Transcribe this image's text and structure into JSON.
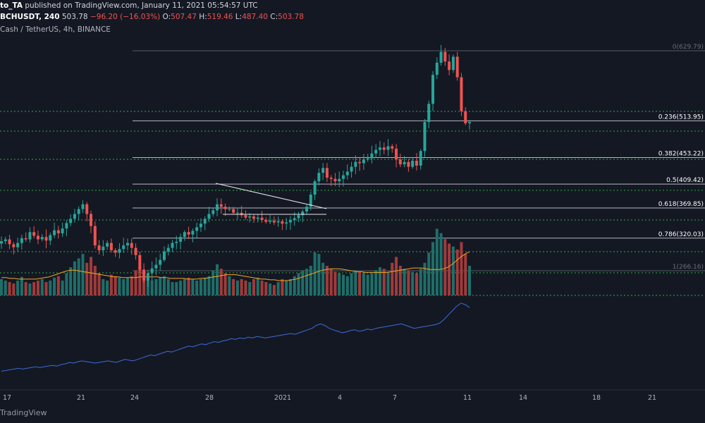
{
  "header": {
    "author": "to_TA",
    "published": "published on TradingView.com, January 11, 2021 05:54:57 UTC",
    "symbol": "BCHUSDT, 240",
    "price": "503.78",
    "change": "−96.20 (−16.03%)",
    "o_label": "O:",
    "o_value": "507.47",
    "h_label": "H:",
    "h_value": "519.46",
    "l_label": "L:",
    "l_value": "487.40",
    "c_label": "C:",
    "c_value": "503.78"
  },
  "subtitle": "Cash / TetherUS, 4h, BINANCE",
  "footer": {
    "brand": "TradingView"
  },
  "colors": {
    "up": "#26a69a",
    "down": "#ef5350",
    "volume_up": "#1e6f69",
    "volume_down": "#a33a3a",
    "fib_line": "#d1d4dc",
    "green_dotted": "#2ebd46",
    "ma_line": "#f5a623",
    "indicator": "#3c6bd6"
  },
  "chart_data": {
    "type": "candlestick",
    "symbol": "BCHUSDT",
    "interval": "4h",
    "exchange": "BINANCE",
    "fib_levels": [
      {
        "ratio": "0",
        "price": 629.79,
        "label": "0(629.79)"
      },
      {
        "ratio": "0.236",
        "price": 513.95,
        "label": "0.236(513.95)"
      },
      {
        "ratio": "0.382",
        "price": 453.22,
        "label": "0.382(453.22)"
      },
      {
        "ratio": "0.5",
        "price": 409.42,
        "label": "0.5(409.42)"
      },
      {
        "ratio": "0.618",
        "price": 369.85,
        "label": "0.618(369.85)"
      },
      {
        "ratio": "0.786",
        "price": 320.03,
        "label": "0.786(320.03)"
      },
      {
        "ratio": "1",
        "price": 266.16,
        "label": "1(266.16)"
      }
    ],
    "x_ticks": [
      "17",
      "21",
      "24",
      "28",
      "2021",
      "4",
      "7",
      "11",
      "14",
      "18",
      "21"
    ],
    "price_series_close": [
      315,
      318,
      310,
      305,
      312,
      320,
      318,
      330,
      324,
      318,
      322,
      316,
      325,
      333,
      328,
      336,
      345,
      352,
      360,
      368,
      376,
      360,
      340,
      308,
      300,
      306,
      312,
      300,
      296,
      302,
      308,
      312,
      304,
      292,
      268,
      250,
      262,
      270,
      276,
      284,
      298,
      304,
      312,
      314,
      322,
      330,
      326,
      332,
      338,
      344,
      352,
      360,
      366,
      376,
      372,
      368,
      368,
      362,
      362,
      358,
      354,
      356,
      352,
      354,
      350,
      347,
      349,
      346,
      348,
      344,
      346,
      350,
      353,
      358,
      364,
      372,
      392,
      414,
      428,
      436,
      420,
      418,
      414,
      418,
      424,
      430,
      438,
      446,
      444,
      450,
      452,
      460,
      466,
      470,
      466,
      472,
      468,
      450,
      442,
      446,
      438,
      448,
      440,
      464,
      512,
      542,
      590,
      610,
      628,
      612,
      598,
      620,
      586,
      530,
      510,
      512
    ],
    "volume": [
      22,
      20,
      18,
      16,
      20,
      25,
      18,
      16,
      18,
      20,
      22,
      18,
      20,
      24,
      26,
      20,
      30,
      38,
      46,
      50,
      56,
      44,
      52,
      40,
      30,
      22,
      20,
      28,
      26,
      24,
      22,
      24,
      26,
      34,
      40,
      30,
      22,
      20,
      22,
      24,
      26,
      22,
      18,
      18,
      20,
      22,
      24,
      22,
      20,
      22,
      24,
      26,
      34,
      42,
      36,
      30,
      26,
      22,
      20,
      22,
      20,
      18,
      22,
      24,
      20,
      18,
      16,
      14,
      18,
      22,
      20,
      22,
      26,
      30,
      34,
      36,
      40,
      58,
      56,
      44,
      40,
      36,
      32,
      30,
      28,
      26,
      30,
      34,
      32,
      30,
      28,
      30,
      34,
      38,
      36,
      32,
      44,
      52,
      40,
      36,
      34,
      32,
      30,
      36,
      44,
      58,
      72,
      90,
      84,
      76,
      70,
      66,
      62,
      72,
      56,
      40
    ],
    "volume_ma": [
      24,
      24,
      23,
      23,
      22,
      22,
      22,
      22,
      22,
      23,
      24,
      25,
      27,
      29,
      31,
      33,
      34,
      34,
      33,
      32,
      31,
      30,
      29,
      28,
      27,
      26,
      25,
      25,
      24,
      24,
      24,
      24,
      25,
      25,
      25,
      25,
      25,
      24,
      24,
      23,
      23,
      23,
      23,
      22,
      22,
      22,
      23,
      23,
      24,
      25,
      26,
      27,
      28,
      28,
      28,
      27,
      26,
      25,
      24,
      23,
      22,
      22,
      21,
      21,
      20,
      20,
      20,
      21,
      22,
      24,
      26,
      28,
      30,
      32,
      34,
      35,
      36,
      36,
      36,
      35,
      34,
      33,
      32,
      32,
      31,
      31,
      31,
      31,
      31,
      31,
      32,
      33,
      34,
      35,
      36,
      37,
      37,
      37,
      36,
      35,
      35,
      35,
      36,
      38,
      42,
      47,
      52,
      56,
      59
    ],
    "indicator": [
      8,
      9,
      10,
      11,
      12,
      11,
      12,
      13,
      14,
      13,
      14,
      15,
      16,
      15,
      17,
      18,
      20,
      19,
      21,
      22,
      21,
      20,
      19,
      20,
      21,
      22,
      21,
      20,
      22,
      24,
      23,
      22,
      24,
      26,
      28,
      30,
      29,
      31,
      33,
      35,
      34,
      36,
      38,
      40,
      42,
      41,
      43,
      45,
      44,
      46,
      48,
      47,
      49,
      50,
      52,
      51,
      53,
      52,
      54,
      53,
      55,
      54,
      53,
      54,
      55,
      56,
      57,
      58,
      59,
      58,
      60,
      62,
      64,
      66,
      70,
      72,
      70,
      66,
      64,
      62,
      60,
      61,
      63,
      64,
      62,
      63,
      65,
      64,
      66,
      67,
      68,
      69,
      70,
      71,
      72,
      70,
      68,
      66,
      67,
      68,
      69,
      70,
      71,
      73,
      78,
      84,
      90,
      96,
      100,
      98,
      94
    ]
  }
}
